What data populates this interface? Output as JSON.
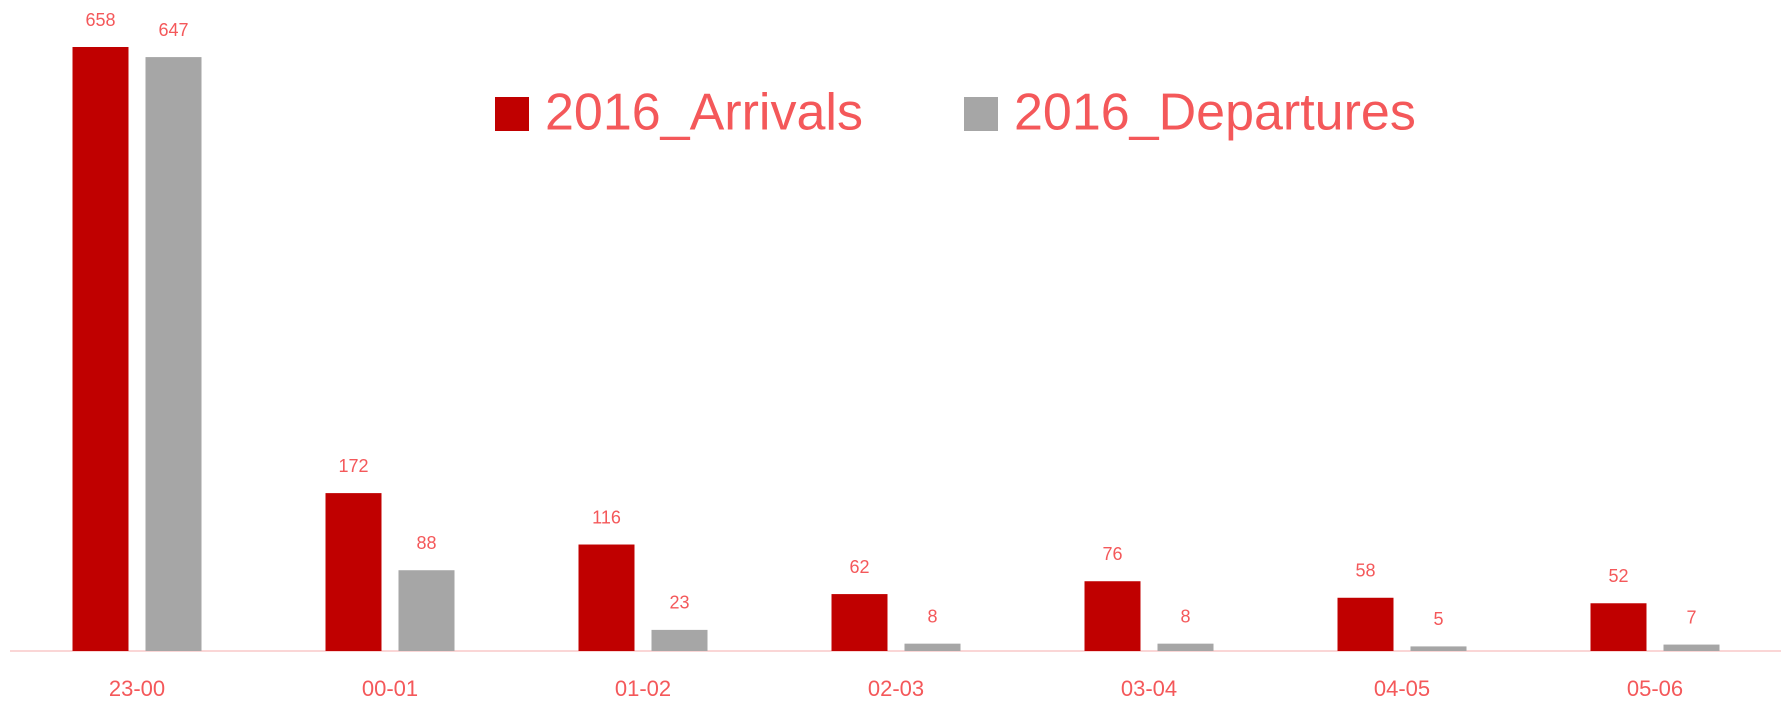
{
  "chart_data": {
    "type": "bar",
    "categories": [
      "23-00",
      "00-01",
      "01-02",
      "02-03",
      "03-04",
      "04-05",
      "05-06"
    ],
    "series": [
      {
        "name": "2016_Arrivals",
        "color": "#c00000",
        "values": [
          658,
          172,
          116,
          62,
          76,
          58,
          52
        ]
      },
      {
        "name": "2016_Departures",
        "color": "#a6a6a6",
        "values": [
          647,
          88,
          23,
          8,
          8,
          5,
          7
        ]
      }
    ]
  }
}
